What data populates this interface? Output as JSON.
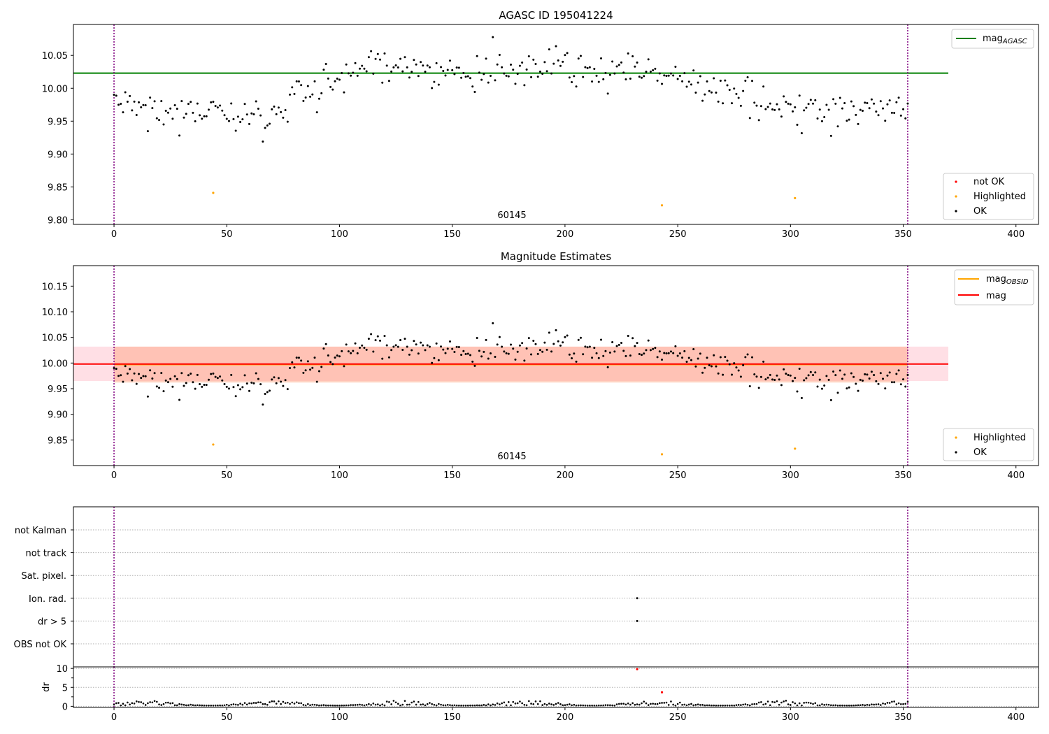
{
  "figure": {
    "panel1_title": "AGASC ID 195041224",
    "panel2_title": "Magnitude Estimates",
    "obsid_annotation": "60145"
  },
  "colors": {
    "ok": "#000000",
    "highlighted": "#ffa500",
    "not_ok": "#ff0000",
    "agasc_line": "#008000",
    "mag_obsid_line": "#ffa500",
    "mag_line": "#ff0000",
    "mag_band": "#ffc0cb",
    "mag_obsid_band": "#ffa07a",
    "boundary": "#800080",
    "grid": "#b0b0b0"
  },
  "chart_data": [
    {
      "type": "scatter",
      "title": "AGASC ID 195041224",
      "xlim": [
        -18,
        410
      ],
      "ylim": [
        9.793,
        10.097
      ],
      "xticks": [
        0,
        50,
        100,
        150,
        200,
        250,
        300,
        350,
        400
      ],
      "yticks": [
        "9.80",
        "9.85",
        "9.90",
        "9.95",
        "10.00",
        "10.05"
      ],
      "ytick_values": [
        9.8,
        9.85,
        9.9,
        9.95,
        10.0,
        10.05
      ],
      "legend_lines": [
        {
          "name": "mag",
          "sub": "AGASC",
          "color": "#008000"
        }
      ],
      "legend_markers": [
        {
          "name": "not OK",
          "color": "#ff0000"
        },
        {
          "name": "Highlighted",
          "color": "#ffa500"
        },
        {
          "name": "OK",
          "color": "#000000"
        }
      ],
      "reference_lines": {
        "mag_agasc": 10.023
      },
      "highlighted_points": [
        [
          44,
          9.841
        ],
        [
          243,
          9.822
        ],
        [
          302,
          9.833
        ]
      ],
      "obs_boundaries": [
        0,
        352
      ],
      "annotation": {
        "text": "60145",
        "x": 176,
        "y": 9.804
      },
      "trend": [
        [
          0,
          9.985
        ],
        [
          20,
          9.965
        ],
        [
          40,
          9.963
        ],
        [
          60,
          9.958
        ],
        [
          70,
          9.955
        ],
        [
          80,
          9.985
        ],
        [
          90,
          9.998
        ],
        [
          100,
          10.015
        ],
        [
          115,
          10.03
        ],
        [
          130,
          10.035
        ],
        [
          145,
          10.035
        ],
        [
          155,
          10.022
        ],
        [
          170,
          10.022
        ],
        [
          185,
          10.038
        ],
        [
          200,
          10.032
        ],
        [
          215,
          10.025
        ],
        [
          230,
          10.028
        ],
        [
          240,
          10.025
        ],
        [
          250,
          10.005
        ],
        [
          260,
          10.005
        ],
        [
          270,
          10.0
        ],
        [
          280,
          9.985
        ],
        [
          290,
          9.975
        ],
        [
          300,
          9.968
        ],
        [
          315,
          9.962
        ],
        [
          330,
          9.958
        ],
        [
          340,
          9.97
        ],
        [
          352,
          9.975
        ]
      ],
      "ok_points_count": 352
    },
    {
      "type": "scatter",
      "title": "Magnitude Estimates",
      "xlim": [
        -18,
        410
      ],
      "ylim": [
        9.8,
        10.19
      ],
      "xticks": [
        0,
        50,
        100,
        150,
        200,
        250,
        300,
        350,
        400
      ],
      "yticks": [
        "9.85",
        "9.90",
        "9.95",
        "10.00",
        "10.05",
        "10.10",
        "10.15"
      ],
      "ytick_values": [
        9.85,
        9.9,
        9.95,
        10.0,
        10.05,
        10.1,
        10.15
      ],
      "legend_lines": [
        {
          "name": "mag",
          "sub": "OBSID",
          "color": "#ffa500"
        },
        {
          "name": "mag",
          "sub": "",
          "color": "#ff0000"
        }
      ],
      "legend_markers": [
        {
          "name": "Highlighted",
          "color": "#ffa500"
        },
        {
          "name": "OK",
          "color": "#000000"
        }
      ],
      "reference_lines": {
        "mag": 9.998,
        "mag_obsid": 9.997
      },
      "bands": {
        "mag": [
          9.965,
          10.032
        ],
        "mag_obsid": [
          9.962,
          10.032
        ]
      },
      "highlighted_points": [
        [
          44,
          9.841
        ],
        [
          243,
          9.822
        ],
        [
          302,
          9.833
        ]
      ],
      "obs_boundaries": [
        0,
        352
      ],
      "annotation": {
        "text": "60145",
        "x": 176,
        "y": 9.81
      }
    },
    {
      "type": "scatter",
      "xlim": [
        -18,
        410
      ],
      "flag_labels": [
        "not Kalman",
        "not track",
        "Sat. pixel.",
        "Ion. rad.",
        "dr > 5",
        "OBS not OK"
      ],
      "flag_points": [
        {
          "flag": "Ion. rad.",
          "x": 232
        },
        {
          "flag": "dr > 5",
          "x": 232
        }
      ],
      "obs_boundaries": [
        0,
        352
      ]
    },
    {
      "type": "scatter",
      "xlim": [
        -18,
        410
      ],
      "ylim": [
        -0.3,
        10.4
      ],
      "ylabel": "dr",
      "xticks": [
        0,
        50,
        100,
        150,
        200,
        250,
        300,
        350,
        400
      ],
      "yticks": [
        "0",
        "5",
        "10"
      ],
      "ytick_values": [
        0,
        5,
        10
      ],
      "outliers": [
        {
          "x": 232,
          "y": 9.8,
          "color": "#ff0000"
        },
        {
          "x": 243,
          "y": 3.7,
          "color": "#ff0000"
        }
      ],
      "typical_dr": [
        0.2,
        1.5
      ],
      "obs_boundaries": [
        0,
        352
      ]
    }
  ]
}
